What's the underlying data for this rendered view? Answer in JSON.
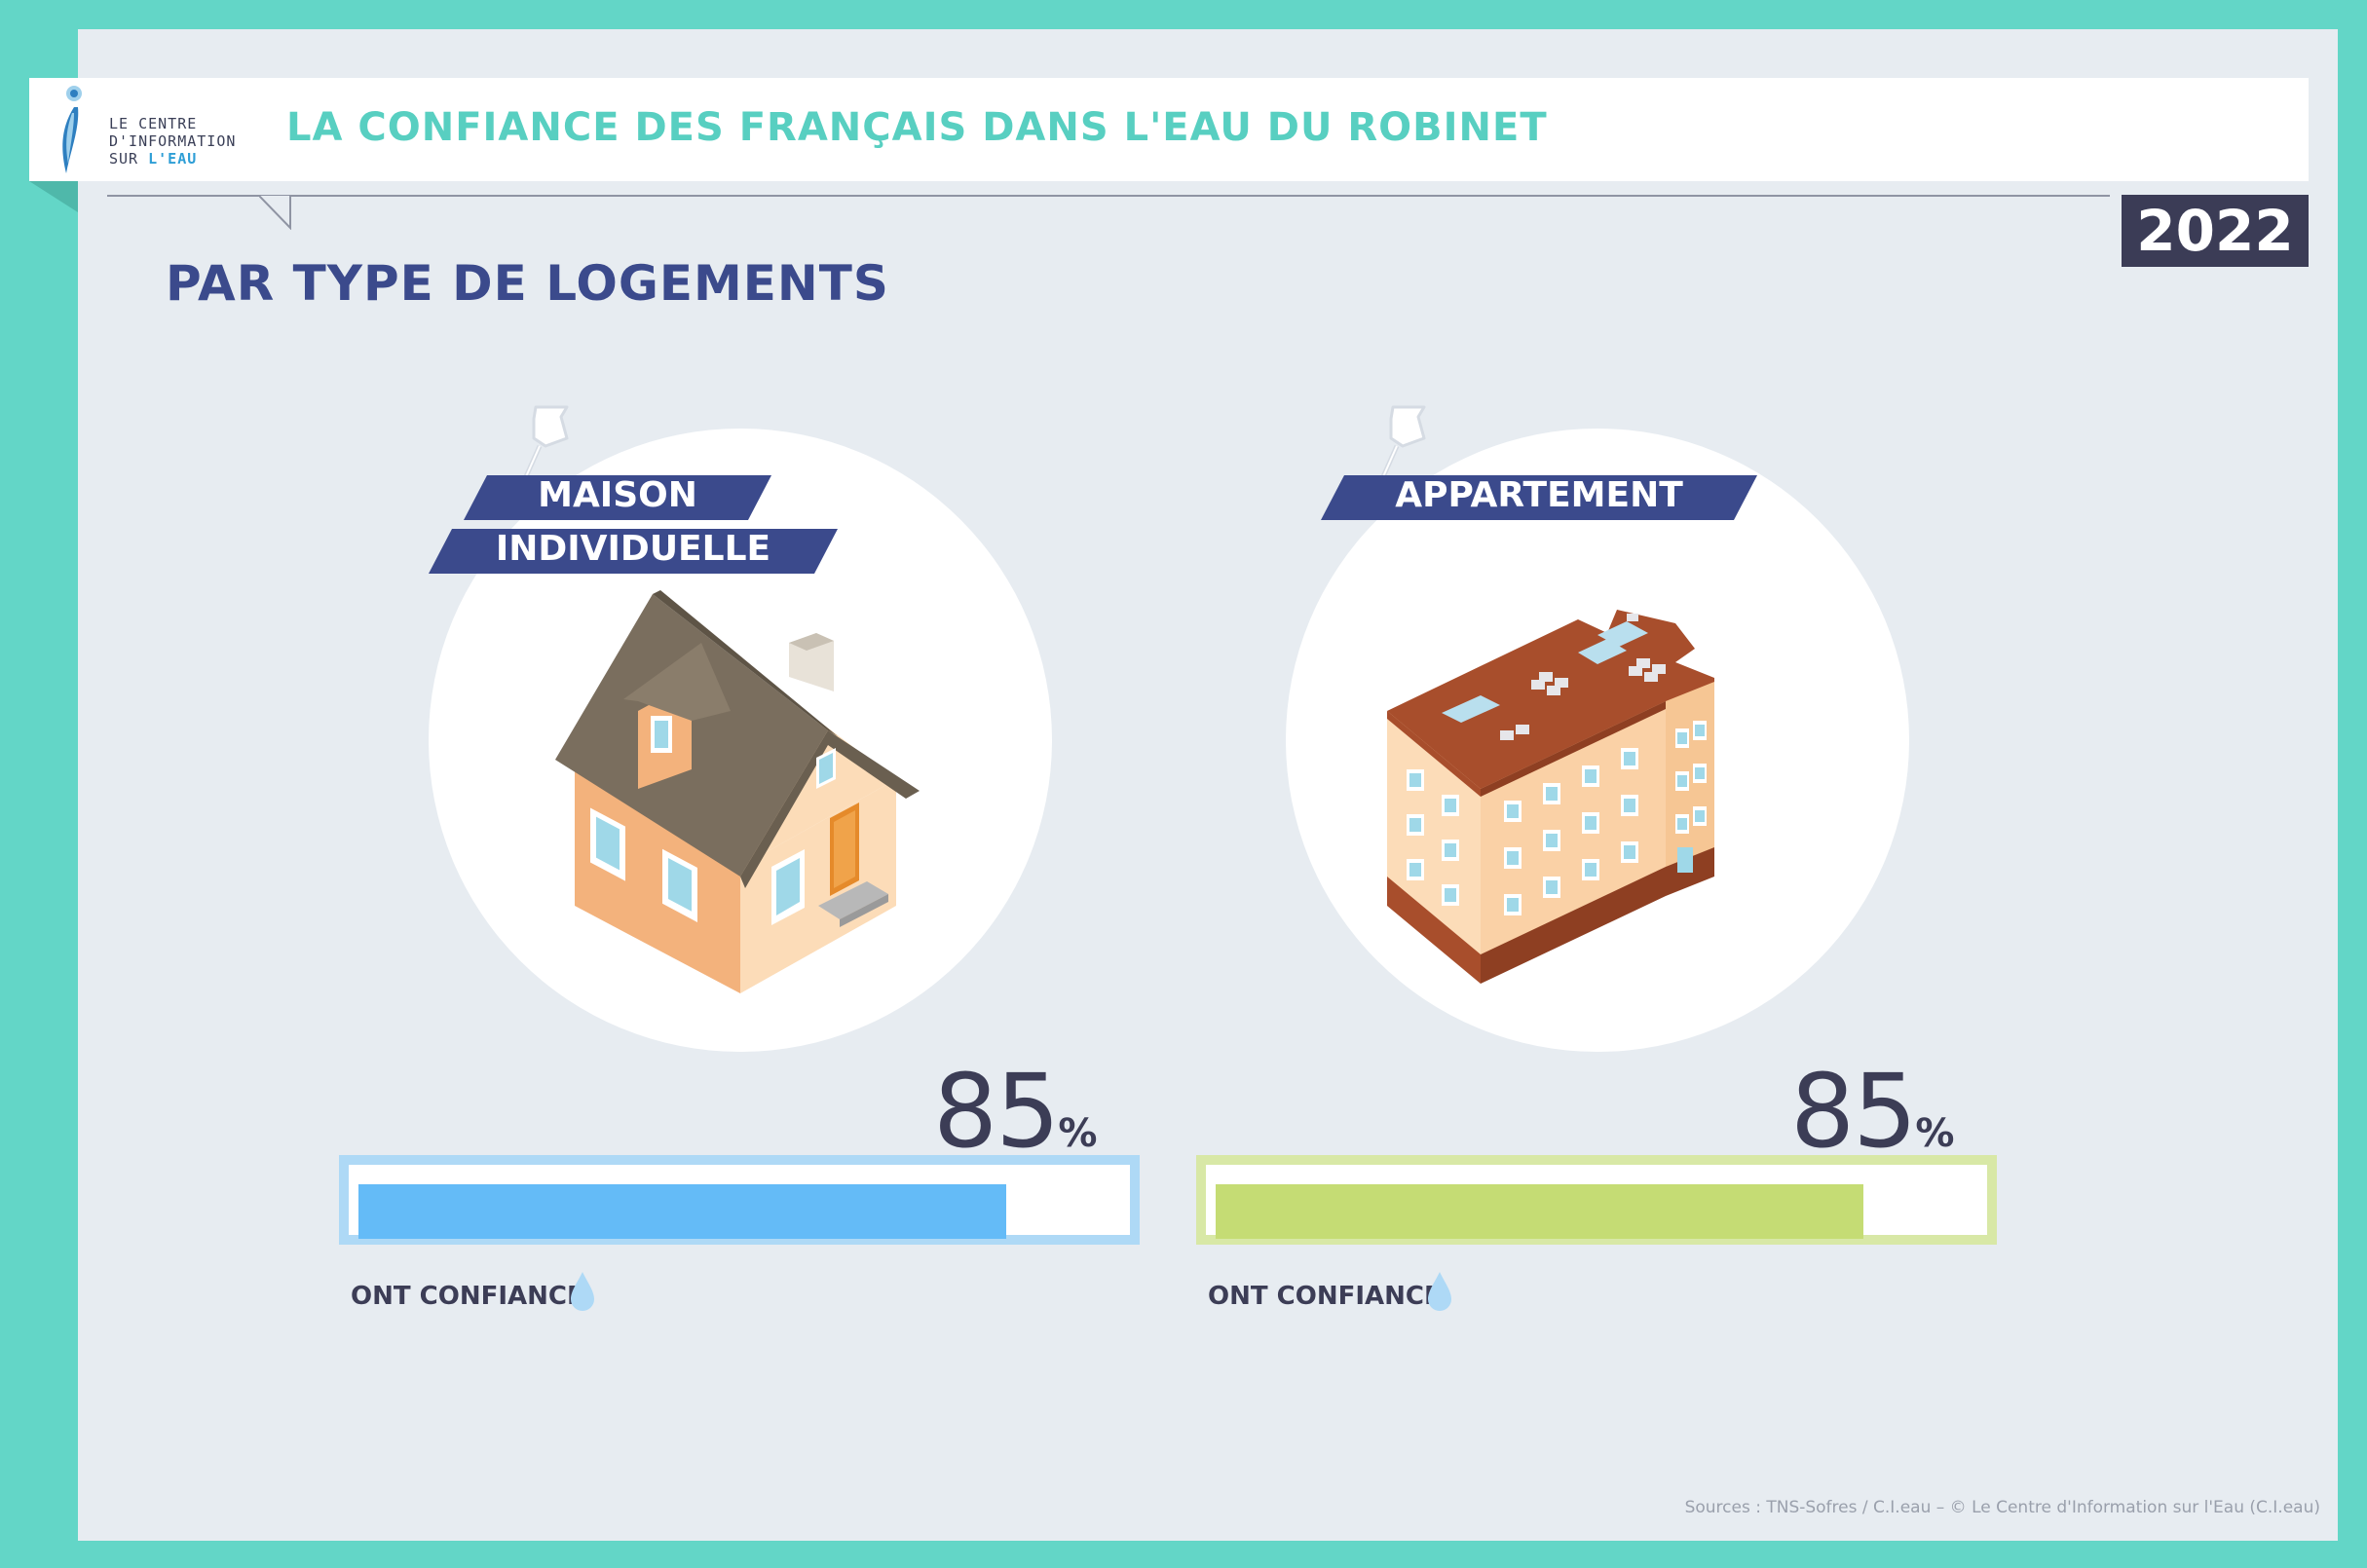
{
  "logo": {
    "line1": "LE CENTRE",
    "line2": "D'INFORMATION",
    "line3_a": "SUR ",
    "line3_b": "L'EAU"
  },
  "header": {
    "title": "LA CONFIANCE DES FRANÇAIS DANS L'EAU DU ROBINET",
    "year": "2022"
  },
  "subtitle": "PAR TYPE DE LOGEMENTS",
  "panels": [
    {
      "label_line1": "MAISON",
      "label_line2": "INDIVIDUELLE",
      "value": "85",
      "value_fraction": 0.85,
      "percent_sign": "%",
      "caption": "ONT CONFIANCE",
      "bar_color": "#64bbf7",
      "bar_border": "#aed9f6",
      "illustration": "house-icon"
    },
    {
      "label_line1": "APPARTEMENT",
      "value": "85",
      "value_fraction": 0.85,
      "percent_sign": "%",
      "caption": "ONT CONFIANCE",
      "bar_color": "#c5dc74",
      "bar_border": "#d8e8a6",
      "illustration": "apartment-building-icon"
    }
  ],
  "colors": {
    "background": "#63d6c7",
    "panel": "#e7ecf1",
    "title": "#58cfc1",
    "navy": "#3b4a8c",
    "dark": "#3c3d56"
  },
  "source": "Sources : TNS-Sofres / C.I.eau – © Le Centre d'Information sur l'Eau (C.I.eau)"
}
